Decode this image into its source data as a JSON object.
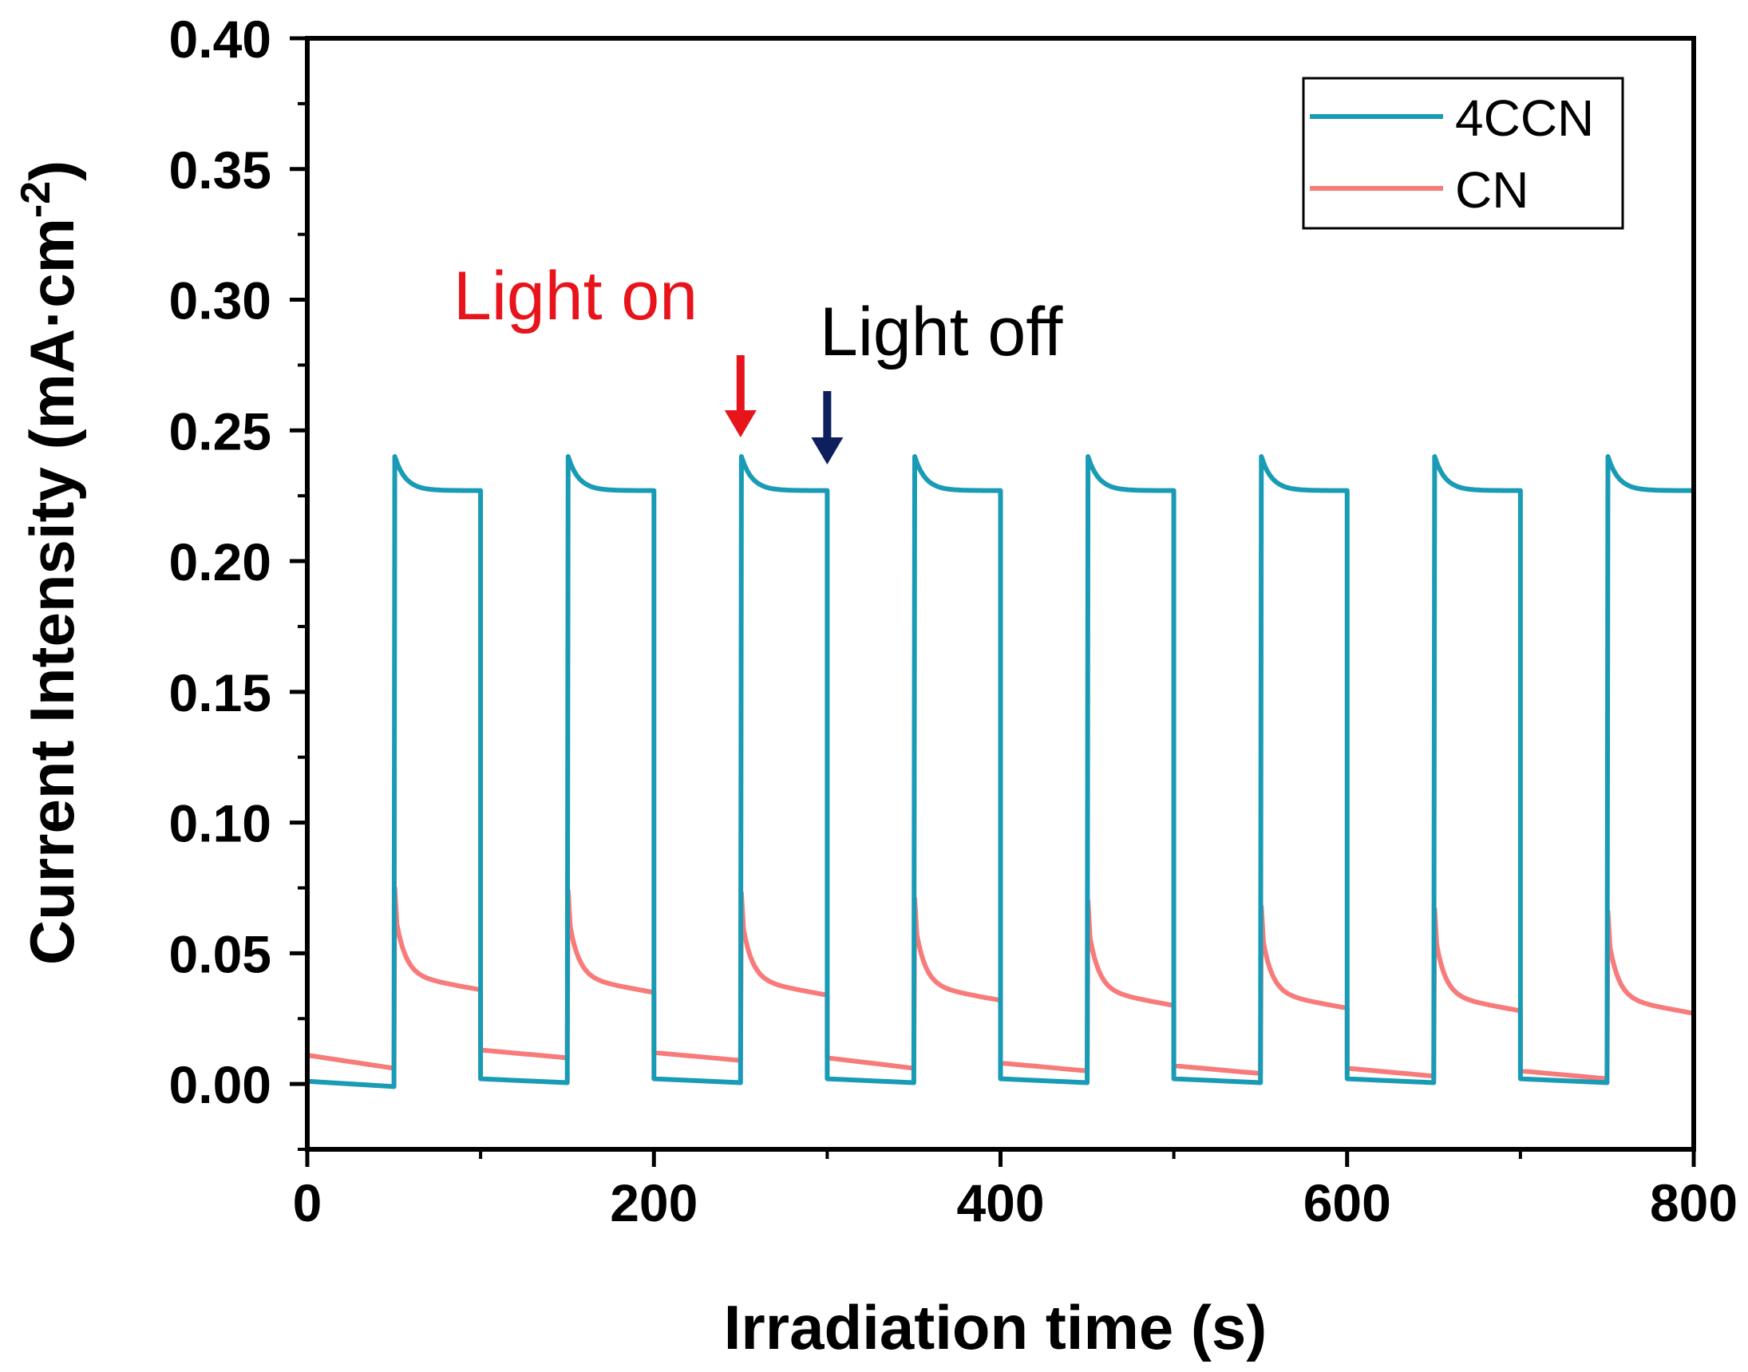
{
  "chart_data": {
    "type": "line",
    "title": "",
    "xlabel": "Irradiation time (s)",
    "ylabel_main": "Current Intensity (mA·cm",
    "ylabel_sup": "-2",
    "ylabel_close": ")",
    "xlim": [
      0,
      800
    ],
    "ylim": [
      -0.025,
      0.4
    ],
    "xticks": [
      0,
      200,
      400,
      600,
      800
    ],
    "xtick_labels": [
      "0",
      "200",
      "400",
      "600",
      "800"
    ],
    "yticks": [
      0.0,
      0.05,
      0.1,
      0.15,
      0.2,
      0.25,
      0.3,
      0.35,
      0.4
    ],
    "ytick_labels": [
      "0.00",
      "0.05",
      "0.10",
      "0.15",
      "0.20",
      "0.25",
      "0.30",
      "0.35",
      "0.40"
    ],
    "grid": false,
    "legend_position": "top-right",
    "period_s": 100,
    "light_on_offset_s": 50,
    "cycles": 8,
    "series": [
      {
        "name": "4CCN",
        "color": "#1a9bb5",
        "dark_current_start": 0.0,
        "dark_current_decay_end": -0.001,
        "dark_current_after_off": 0.002,
        "photocurrent_peak": 0.24,
        "photocurrent_plateau": 0.227
      },
      {
        "name": "CN",
        "color": "#f77b7b",
        "initial_dark_current": 0.011,
        "dark_current_end_values": [
          0.006,
          0.01,
          0.009,
          0.006,
          0.005,
          0.004,
          0.003,
          0.002
        ],
        "dark_current_start_values": [
          0.011,
          0.013,
          0.012,
          0.01,
          0.008,
          0.007,
          0.006,
          0.005
        ],
        "photocurrent_peaks": [
          0.075,
          0.074,
          0.073,
          0.071,
          0.07,
          0.068,
          0.067,
          0.066
        ],
        "photocurrent_end_values": [
          0.036,
          0.035,
          0.034,
          0.032,
          0.03,
          0.029,
          0.028,
          0.027
        ]
      }
    ],
    "annotations": [
      {
        "text": "Light on",
        "color": "#e8141c",
        "arrow_x": 250
      },
      {
        "text": "Light off",
        "color": "#000000",
        "arrow_x": 300,
        "arrow_color": "#0d1f5c"
      }
    ]
  }
}
